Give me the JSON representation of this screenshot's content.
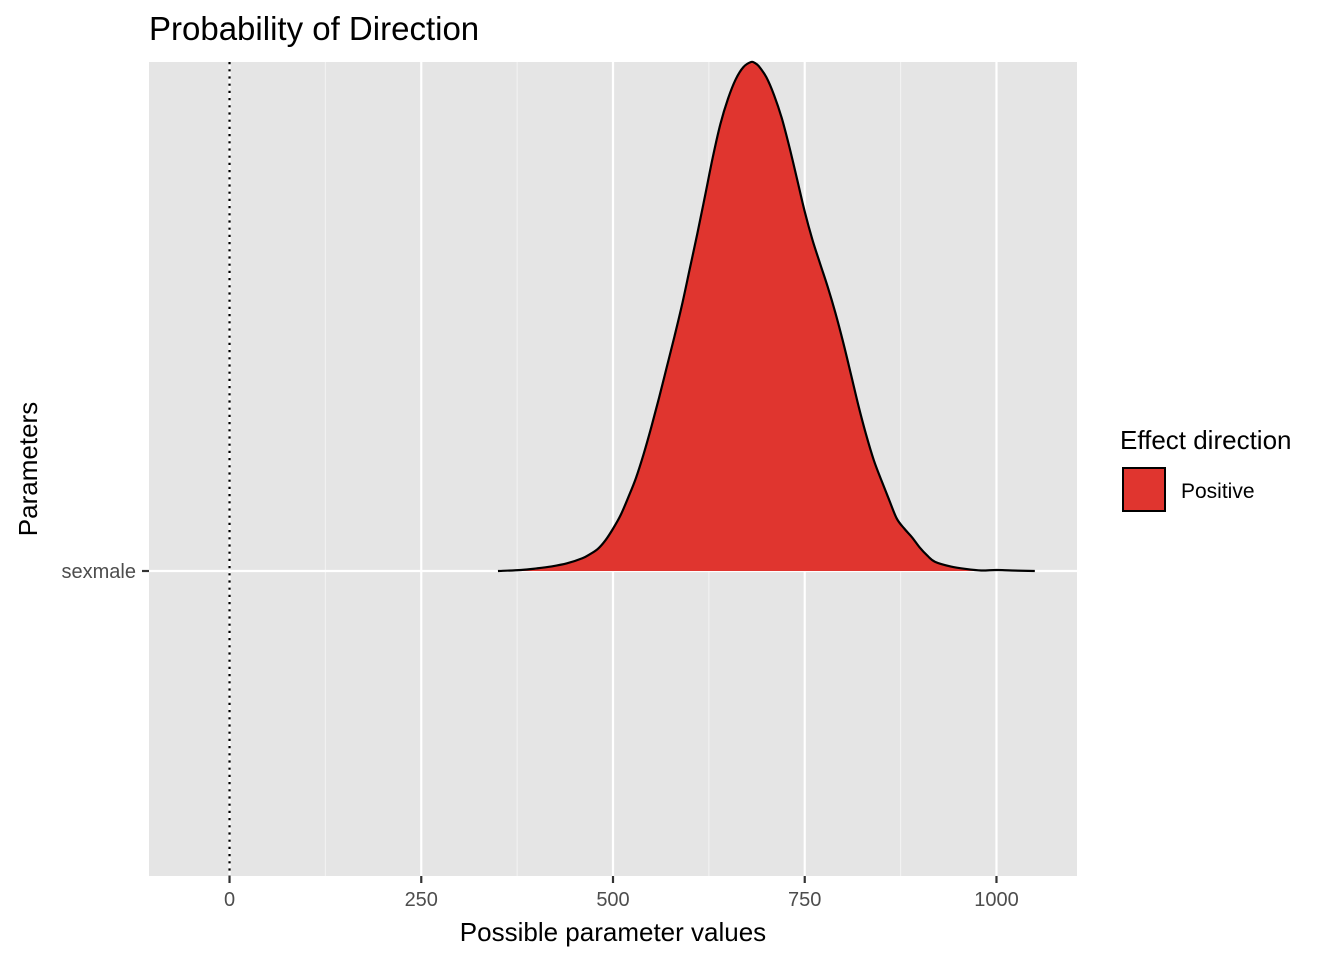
{
  "chart_data": {
    "type": "area",
    "title": "Probability of Direction",
    "xlabel": "Possible parameter values",
    "ylabel": "Parameters",
    "xlim": [
      -105,
      1105
    ],
    "x_ticks": [
      0,
      250,
      500,
      750,
      1000
    ],
    "x_minor_ticks": [
      125,
      375,
      625,
      875
    ],
    "categories": [
      "sexmale"
    ],
    "reference_line": {
      "x": 0,
      "style": "dotted"
    },
    "grid": true,
    "legend": {
      "title": "Effect direction",
      "position": "right",
      "entries": [
        {
          "label": "Positive",
          "color": "#E0352F"
        }
      ]
    },
    "series": [
      {
        "name": "Positive",
        "category": "sexmale",
        "color": "#E0352F",
        "x": [
          350,
          380,
          400,
          420,
          440,
          460,
          470,
          480,
          490,
          500,
          510,
          520,
          530,
          540,
          550,
          560,
          570,
          580,
          590,
          600,
          610,
          620,
          630,
          640,
          650,
          660,
          670,
          680,
          685,
          690,
          700,
          710,
          720,
          730,
          740,
          750,
          760,
          770,
          780,
          790,
          800,
          810,
          820,
          830,
          840,
          850,
          860,
          870,
          880,
          890,
          900,
          910,
          920,
          940,
          960,
          980,
          1000,
          1020,
          1050
        ],
        "density": [
          0.0,
          0.002,
          0.005,
          0.009,
          0.015,
          0.025,
          0.033,
          0.043,
          0.06,
          0.083,
          0.11,
          0.145,
          0.183,
          0.23,
          0.283,
          0.34,
          0.4,
          0.46,
          0.523,
          0.593,
          0.663,
          0.737,
          0.812,
          0.878,
          0.928,
          0.966,
          0.99,
          1.0,
          0.998,
          0.992,
          0.97,
          0.935,
          0.89,
          0.833,
          0.77,
          0.706,
          0.651,
          0.604,
          0.558,
          0.507,
          0.45,
          0.388,
          0.325,
          0.268,
          0.218,
          0.178,
          0.14,
          0.103,
          0.083,
          0.066,
          0.046,
          0.03,
          0.018,
          0.009,
          0.004,
          0.001,
          0.002,
          0.001,
          0.0
        ]
      }
    ]
  }
}
